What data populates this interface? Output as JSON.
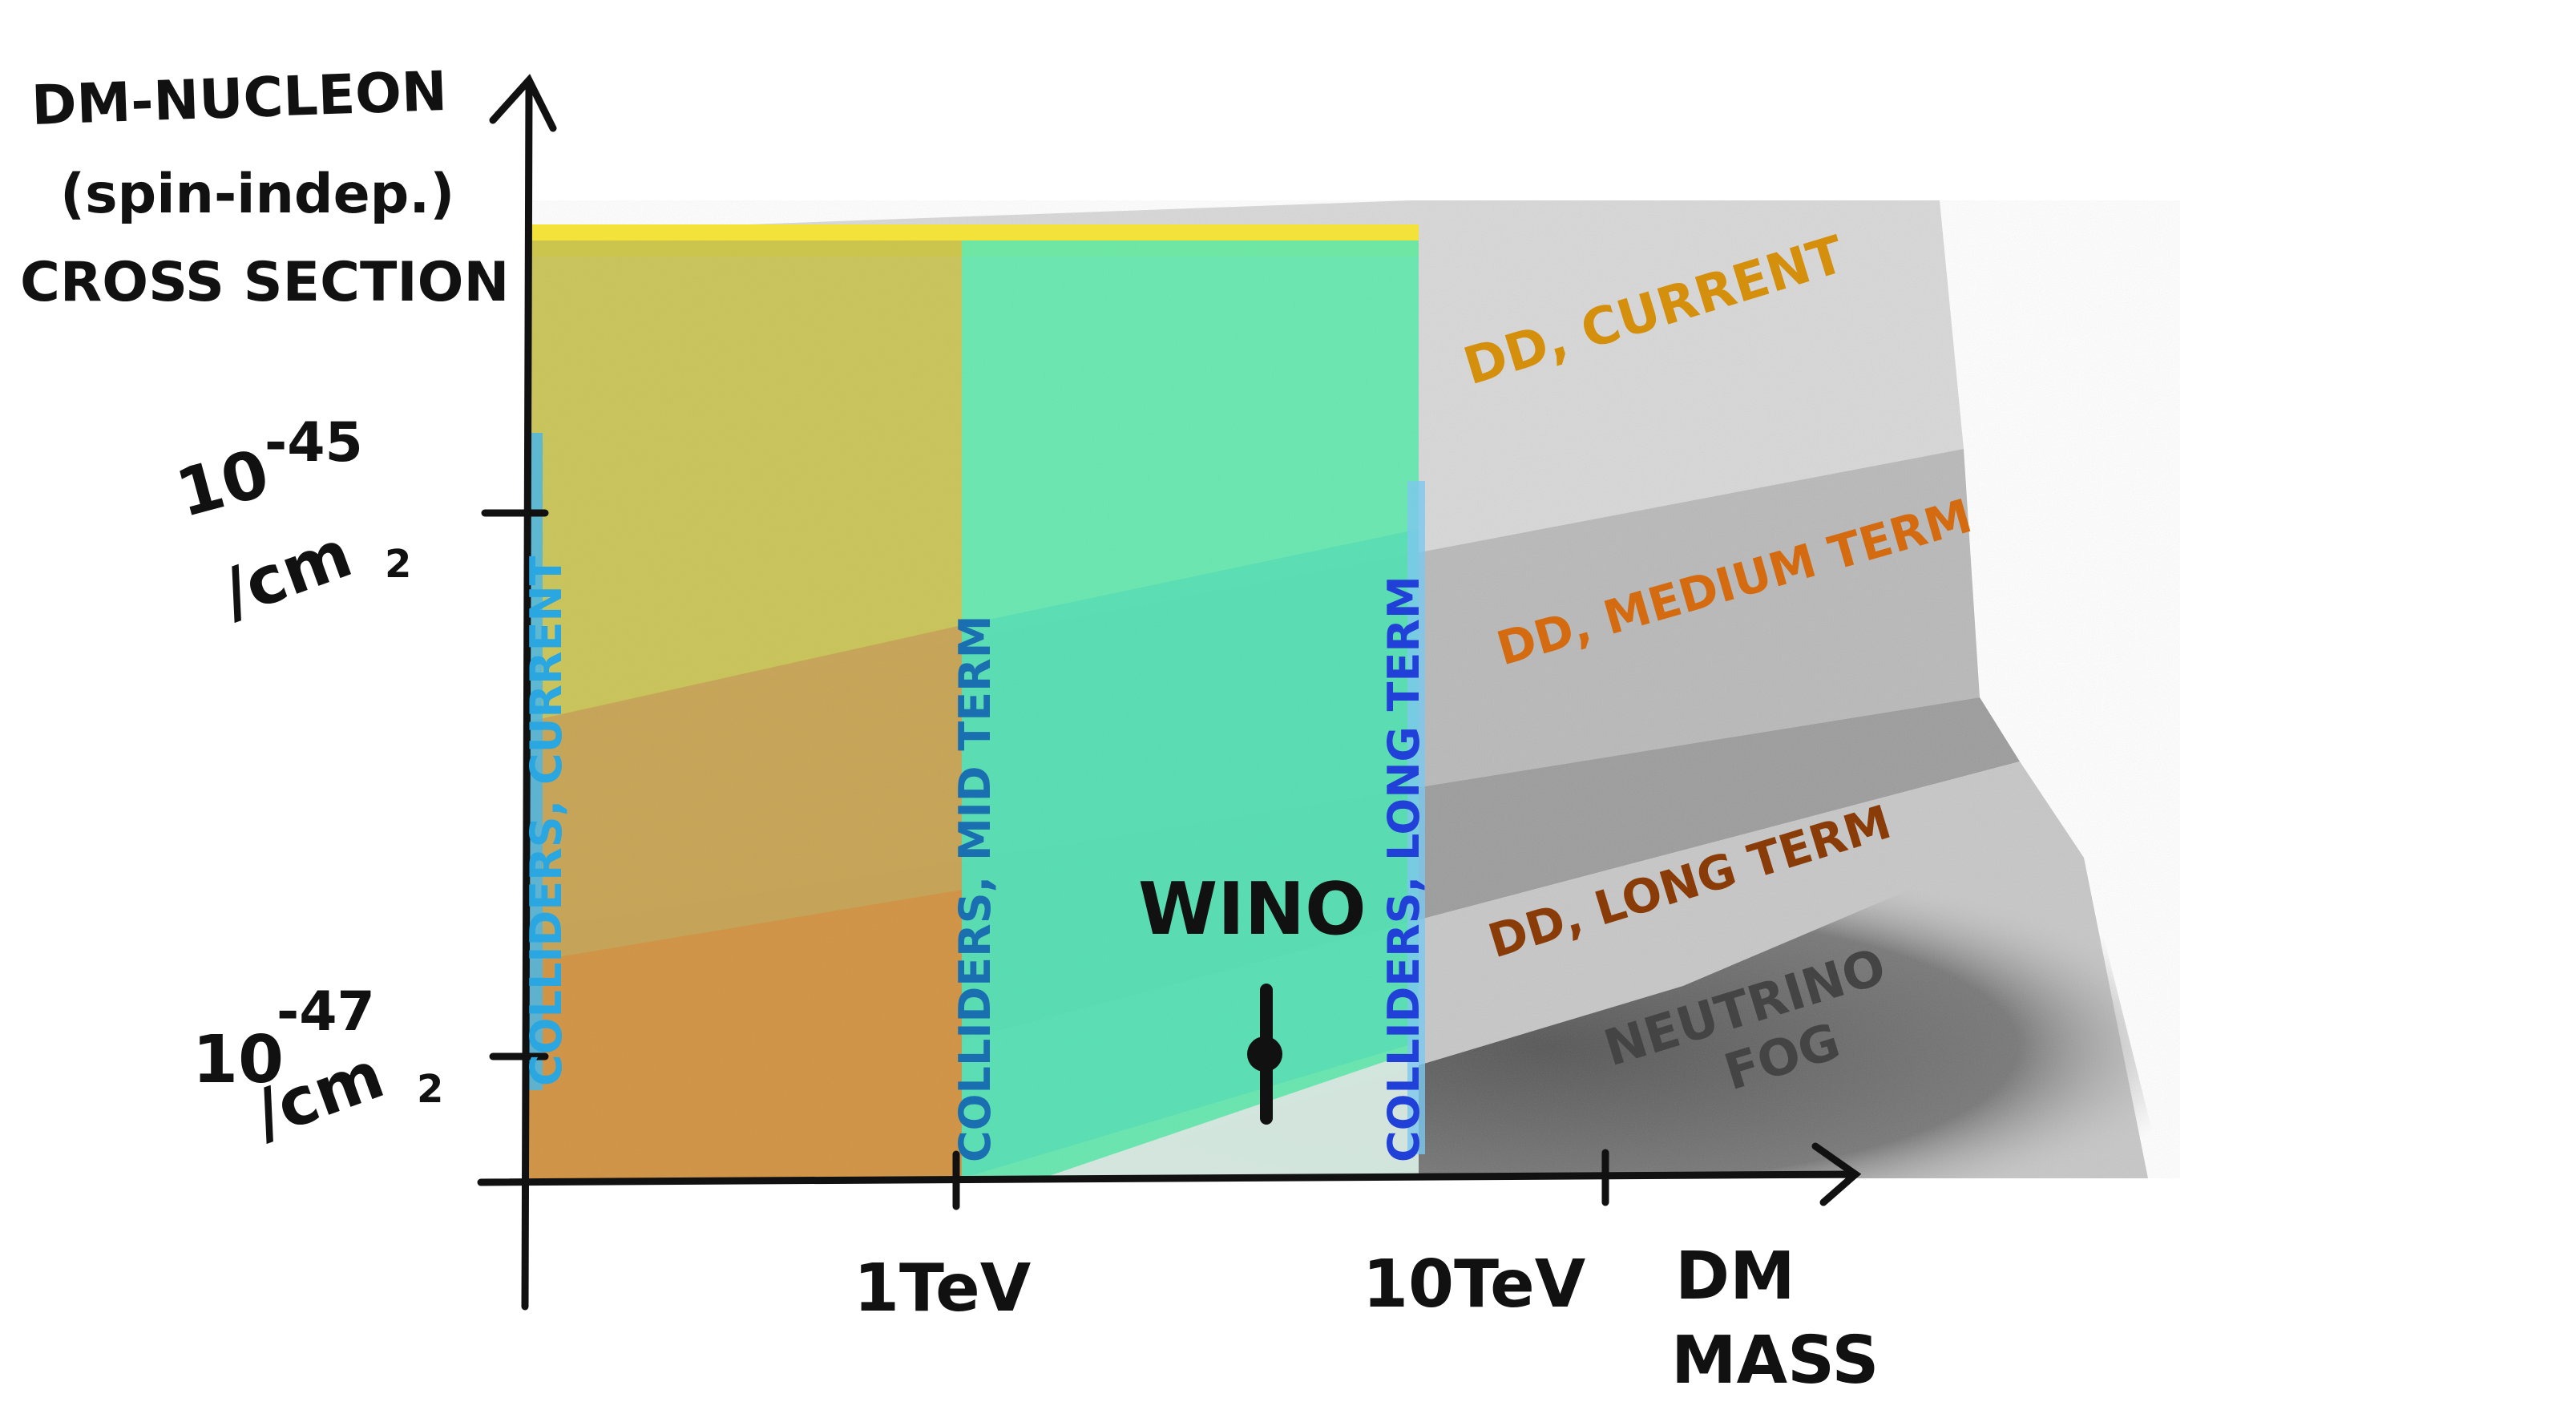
{
  "y_axis": {
    "title_lines": [
      "DM-NUCLEON",
      "(spin-indep.)",
      "CROSS SECTION"
    ],
    "ticks": [
      {
        "base": "10",
        "exp": "-45",
        "unit": "/cm",
        "unit_exp": "2"
      },
      {
        "base": "10",
        "exp": "-47",
        "unit": "/cm",
        "unit_exp": "2"
      }
    ]
  },
  "x_axis": {
    "title_lines": [
      "DM",
      "MASS"
    ],
    "ticks": [
      "1TeV",
      "10TeV"
    ]
  },
  "collider_regions": [
    {
      "label": "COLLIDERS, CURRENT",
      "color": "#2aa7e0"
    },
    {
      "label": "COLLIDERS, MID TERM",
      "color": "#1a6fb0"
    },
    {
      "label": "COLLIDERS, LONG TERM",
      "color": "#2040d8"
    }
  ],
  "dd_regions": [
    {
      "label": "DD, CURRENT",
      "color": "#d4900c"
    },
    {
      "label": "DD, MEDIUM TERM",
      "color": "#d46b10"
    },
    {
      "label": "DD, LONG TERM",
      "color": "#8a3c08"
    }
  ],
  "neutrino_fog": {
    "line1": "NEUTRINO",
    "line2": "FOG"
  },
  "point": {
    "label": "WINO"
  },
  "colors": {
    "grey_light": "#d9d9d9",
    "grey_mid": "#bdbdbd",
    "grey_dark": "#9a9a9a",
    "fog": "#6e6e6e",
    "collider_current_fill": "#c8c94a",
    "collider_mid_fill": "#55e6a8",
    "collider_long_fill": "#55e6a8",
    "yellow_top": "#f2e23a"
  }
}
